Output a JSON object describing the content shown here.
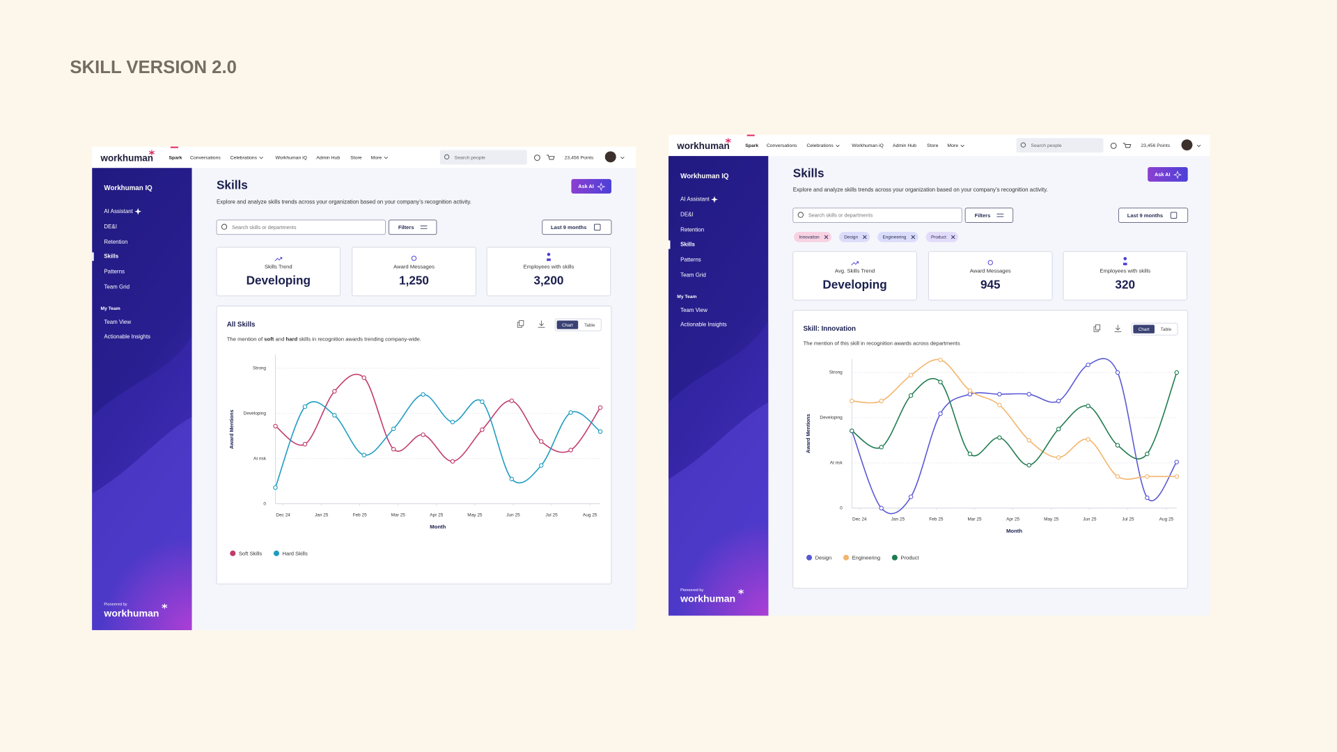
{
  "page_title": "SKILL VERSION 2.0",
  "screens": [
    {
      "nav": {
        "logo": "workhuman",
        "items": [
          "Spark",
          "Conversations",
          "Celebrations",
          "Workhuman iQ",
          "Admin Hub",
          "Store",
          "More"
        ],
        "search": "Search people",
        "points": "23,456 Points"
      },
      "sidebar": {
        "title": "Workhuman IQ",
        "items": [
          "AI Assistant",
          "DE&I",
          "Retention",
          "Skills",
          "Patterns",
          "Team Grid"
        ],
        "section": "My Team",
        "section_items": [
          "Team View",
          "Actionable Insights"
        ],
        "footer_note": "Pioneered by",
        "footer_logo": "workhuman"
      },
      "header": {
        "title": "Skills",
        "description": "Explore and analyze skills trends across your organization based on your company’s recognition activity.",
        "ask_button": "Ask AI"
      },
      "toolbar": {
        "search": "Search skills or departments",
        "filters": "Filters",
        "period": "Last 9 months"
      },
      "cards": [
        {
          "label": "Skills Trend",
          "value": "Developing"
        },
        {
          "label": "Award Messages",
          "value": "1,250"
        },
        {
          "label": "Employees with skills",
          "value": "3,200"
        }
      ],
      "view_toggle": [
        "Chart",
        "Table"
      ],
      "chart_data": {
        "type": "line",
        "title": "All Skills",
        "subtitle": [
          "The mention of ",
          "soft",
          " and ",
          "hard",
          " skills in recognition awards trending company-wide."
        ],
        "ylabel": "Award Mentions",
        "xlabel": "Month",
        "x": [
          -0.2,
          0.57,
          1.34,
          2.11,
          2.88,
          3.65,
          4.42,
          5.19,
          5.96,
          6.73,
          7.5,
          8.27
        ],
        "xlim": [
          -0.2,
          8.27
        ],
        "xticks": [
          {
            "value": 0,
            "label": "Dec 24"
          },
          {
            "value": 1,
            "label": "Jan 25"
          },
          {
            "value": 2,
            "label": "Feb 25"
          },
          {
            "value": 3,
            "label": "Mar 25"
          },
          {
            "value": 4,
            "label": "Apr 25"
          },
          {
            "value": 5,
            "label": "May 25"
          },
          {
            "value": 6,
            "label": "Jun 25"
          },
          {
            "value": 7,
            "label": "Jul 25"
          },
          {
            "value": 8,
            "label": "Aug 25"
          }
        ],
        "ylim": [
          0,
          3.3
        ],
        "yticks": [
          0,
          {
            "value": 1,
            "label": "At risk"
          },
          {
            "value": 2,
            "label": "Developing"
          },
          {
            "value": 3,
            "label": "Strong"
          }
        ],
        "grid": true,
        "series": [
          {
            "name": "Soft Skills",
            "color": "#c03a6c",
            "values": [
              1.72,
              1.32,
              2.49,
              2.79,
              1.21,
              1.53,
              0.94,
              1.64,
              2.28,
              1.38,
              1.19,
              2.13
            ]
          },
          {
            "name": "Hard Skills",
            "color": "#1e9cc0",
            "values": [
              0.36,
              2.15,
              1.96,
              1.08,
              1.66,
              2.42,
              1.81,
              2.26,
              0.55,
              0.85,
              2.02,
              1.6
            ]
          }
        ]
      }
    },
    {
      "nav": {
        "logo": "workhuman",
        "items": [
          "Spark",
          "Conversations",
          "Celebrations",
          "Workhuman iQ",
          "Admin Hub",
          "Store",
          "More"
        ],
        "search": "Search people",
        "points": "23,456 Points"
      },
      "sidebar": {
        "title": "Workhuman IQ",
        "items": [
          "AI Assistant",
          "DE&I",
          "Retention",
          "Skills",
          "Patterns",
          "Team Grid"
        ],
        "section": "My Team",
        "section_items": [
          "Team View",
          "Actionable Insights"
        ],
        "footer_note": "Pioneered by",
        "footer_logo": "workhuman"
      },
      "header": {
        "title": "Skills",
        "description": "Explore and analyze skills trends across your organization based on your company’s recognition activity.",
        "ask_button": "Ask AI"
      },
      "toolbar": {
        "search": "Search skills or departments",
        "filters": "Filters",
        "period": "Last 9 months"
      },
      "chips": [
        "Innovation",
        "Design",
        "Engineering",
        "Product"
      ],
      "cards": [
        {
          "label": "Avg. Skills Trend",
          "value": "Developing"
        },
        {
          "label": "Award Messages",
          "value": "945"
        },
        {
          "label": "Employees with skills",
          "value": "320"
        }
      ],
      "view_toggle": [
        "Chart",
        "Table"
      ],
      "chart_data": {
        "type": "line",
        "title": "Skill: Innovation",
        "subtitle": "The mention of this skill in recognition awards across departments",
        "ylabel": "Award Mentions",
        "xlabel": "Month",
        "x": [
          -0.2,
          0.57,
          1.34,
          2.11,
          2.88,
          3.65,
          4.42,
          5.19,
          5.96,
          6.73,
          7.5,
          8.27
        ],
        "xlim": [
          -0.2,
          8.27
        ],
        "xticks": [
          {
            "value": 0,
            "label": "Dec 24"
          },
          {
            "value": 1,
            "label": "Jan 25"
          },
          {
            "value": 2,
            "label": "Feb 25"
          },
          {
            "value": 3,
            "label": "Mar 25"
          },
          {
            "value": 4,
            "label": "Apr 25"
          },
          {
            "value": 5,
            "label": "May 25"
          },
          {
            "value": 6,
            "label": "Jun 25"
          },
          {
            "value": 7,
            "label": "Jul 25"
          },
          {
            "value": 8,
            "label": "Aug 25"
          }
        ],
        "ylim": [
          0,
          3.3
        ],
        "yticks": [
          0,
          {
            "value": 1,
            "label": "At risk"
          },
          {
            "value": 2,
            "label": "Developing"
          },
          {
            "value": 3,
            "label": "Strong"
          }
        ],
        "grid": true,
        "series": [
          {
            "name": "Design",
            "color": "#5a58d6",
            "values": [
              1.71,
              0,
              0.25,
              2.09,
              2.52,
              2.52,
              2.52,
              2.37,
              3.17,
              3.0,
              0.23,
              1.02
            ]
          },
          {
            "name": "Engineering",
            "color": "#f3b46c",
            "values": [
              2.37,
              2.37,
              2.94,
              3.28,
              2.6,
              2.28,
              1.5,
              1.12,
              1.52,
              0.7,
              0.7,
              0.7
            ]
          },
          {
            "name": "Product",
            "color": "#1f7a50",
            "values": [
              1.71,
              1.35,
              2.49,
              2.79,
              1.2,
              1.56,
              0.95,
              1.75,
              2.26,
              1.39,
              1.2,
              3.0
            ]
          }
        ]
      }
    }
  ]
}
